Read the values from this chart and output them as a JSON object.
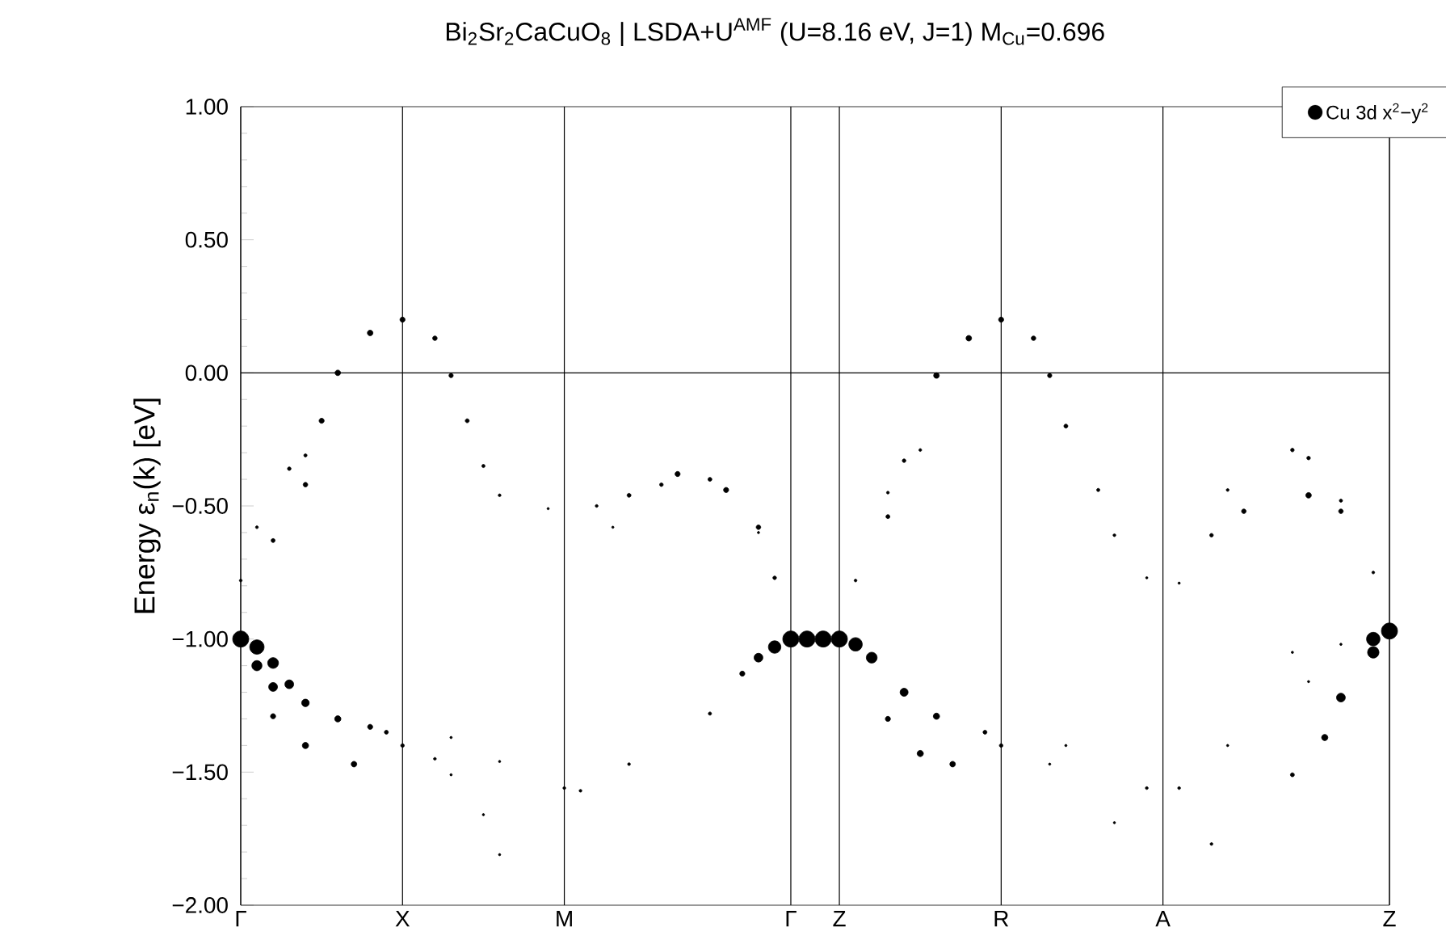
{
  "chart_data": {
    "type": "bubble",
    "title": "Bi$_{2}$Sr$_{2}$CaCuO$_{8}$ | LSDA+U$^{AMF}$ (U=8.16 eV, J=1) M$_{Cu}$=0.696",
    "ylabel": "Energy  ε$_{n}$(k)  [eV]",
    "categories": [
      "Γ",
      null,
      null,
      null,
      null,
      null,
      null,
      null,
      null,
      null,
      "X",
      null,
      null,
      null,
      null,
      null,
      null,
      null,
      null,
      null,
      "M",
      null,
      null,
      null,
      null,
      null,
      null,
      null,
      null,
      null,
      null,
      null,
      null,
      null,
      "Γ",
      null,
      null,
      "Z",
      null,
      null,
      null,
      null,
      null,
      null,
      null,
      null,
      null,
      "R",
      null,
      null,
      null,
      null,
      null,
      null,
      null,
      null,
      null,
      "A",
      null,
      null,
      null,
      null,
      null,
      null,
      null,
      null,
      null,
      null,
      null,
      null,
      null,
      "Z"
    ],
    "ylim": [
      -2,
      1
    ],
    "yticks": [
      {
        "value": 1,
        "label": "1.00"
      },
      {
        "value": 0.5,
        "label": "0.50"
      },
      {
        "value": 0,
        "label": "0.00"
      },
      {
        "value": -0.5,
        "label": "−0.50"
      },
      {
        "value": -1,
        "label": "−1.00"
      },
      {
        "value": -1.5,
        "label": "−1.50"
      },
      {
        "value": -2,
        "label": "−2.00"
      }
    ],
    "grid": "x",
    "legend": "top right",
    "marker": "circle",
    "ref_lines": [
      {
        "axis": "y",
        "value": 0,
        "color": "#000000"
      }
    ],
    "series": [
      {
        "name": "Cu 3d x$^{2}$−y$^{2}$",
        "color": "#000000",
        "values": [
          -1.0,
          -1.03,
          -1.09,
          -1.17,
          -1.24,
          null,
          -1.3,
          null,
          -1.33,
          -1.35,
          null,
          null,
          null,
          null,
          null,
          null,
          null,
          null,
          null,
          null,
          null,
          null,
          -0.5,
          null,
          -0.46,
          null,
          null,
          -0.38,
          null,
          null,
          -0.44,
          null,
          -0.58,
          -0.77,
          null,
          null,
          null,
          null,
          -0.78,
          null,
          -0.54,
          null,
          null,
          -0.01,
          null,
          0.13,
          null,
          0.2,
          null,
          0.13,
          -0.01,
          -0.2,
          null,
          -0.44,
          -0.61,
          null,
          -0.77,
          null,
          -0.79,
          null,
          -0.61,
          null,
          -0.52,
          null,
          null,
          null,
          -0.46,
          null,
          -0.52,
          null,
          -0.75,
          null
        ],
        "sizes": [
          1,
          0.8,
          0.45,
          0.3,
          0.22,
          null,
          0.15,
          null,
          0.1,
          0.06,
          null,
          null,
          null,
          null,
          null,
          null,
          null,
          null,
          null,
          null,
          null,
          null,
          0.03,
          null,
          0.06,
          null,
          null,
          0.1,
          null,
          null,
          0.1,
          null,
          0.08,
          0.05,
          null,
          null,
          null,
          null,
          0.03,
          null,
          0.06,
          null,
          null,
          0.12,
          null,
          0.12,
          null,
          0.1,
          null,
          0.08,
          0.07,
          0.06,
          null,
          0.04,
          0.03,
          null,
          0.02,
          null,
          0.02,
          null,
          0.05,
          null,
          0.08,
          null,
          null,
          null,
          0.12,
          null,
          0.08,
          null,
          0.03,
          null
        ]
      },
      {
        "color": "#000000",
        "values": [
          null,
          -1.1,
          -1.18,
          null,
          null,
          null,
          null,
          null,
          null,
          null,
          null,
          null,
          null,
          -1.37,
          null,
          null,
          -1.46,
          null,
          null,
          null,
          -1.56,
          -1.57,
          null,
          null,
          -1.47,
          null,
          null,
          null,
          null,
          -1.28,
          null,
          -1.13,
          -1.07,
          -1.03,
          -1.0,
          -1.0,
          -1.0,
          -1.0,
          -1.02,
          -1.07,
          null,
          -1.2,
          null,
          -1.29,
          null,
          null,
          -1.35,
          null,
          null,
          null,
          null,
          null,
          null,
          null,
          null,
          null,
          null,
          null,
          null,
          null,
          null,
          -0.44,
          null,
          null,
          null,
          -0.29,
          -0.32,
          null,
          -0.48,
          null,
          null,
          null
        ],
        "sizes": [
          null,
          0.4,
          0.3,
          null,
          null,
          null,
          null,
          null,
          null,
          null,
          null,
          null,
          null,
          0.02,
          null,
          null,
          0.02,
          null,
          null,
          null,
          0.03,
          0.03,
          null,
          null,
          0.03,
          null,
          null,
          null,
          null,
          0.04,
          null,
          0.1,
          0.3,
          0.6,
          1,
          1,
          1,
          1,
          0.7,
          0.45,
          null,
          0.25,
          null,
          0.15,
          null,
          null,
          0.06,
          null,
          null,
          null,
          null,
          null,
          null,
          null,
          null,
          null,
          null,
          null,
          null,
          null,
          null,
          0.03,
          null,
          null,
          null,
          0.05,
          0.05,
          null,
          0.04,
          null,
          null,
          null
        ]
      },
      {
        "color": "#000000",
        "values": [
          null,
          null,
          -1.29,
          null,
          -1.4,
          null,
          null,
          -1.47,
          null,
          null,
          -1.4,
          null,
          -1.45,
          -1.51,
          null,
          -1.66,
          -1.81,
          null,
          null,
          null,
          null,
          null,
          null,
          -0.58,
          null,
          null,
          -0.42,
          null,
          null,
          -0.4,
          null,
          null,
          -0.6,
          null,
          null,
          null,
          null,
          null,
          null,
          null,
          -1.3,
          null,
          -1.43,
          null,
          -1.47,
          null,
          null,
          -1.4,
          null,
          null,
          -1.47,
          null,
          null,
          null,
          -1.69,
          null,
          null,
          null,
          null,
          null,
          -1.77,
          null,
          null,
          null,
          null,
          -1.51,
          null,
          -1.37,
          -1.22,
          null,
          -1.05,
          -0.97
        ],
        "sizes": [
          null,
          null,
          0.1,
          null,
          0.15,
          null,
          null,
          0.12,
          null,
          null,
          0.05,
          null,
          0.03,
          0.02,
          null,
          0.02,
          0.02,
          null,
          null,
          null,
          null,
          null,
          null,
          0.02,
          null,
          null,
          0.05,
          null,
          null,
          0.06,
          null,
          null,
          0.02,
          null,
          null,
          null,
          null,
          null,
          null,
          null,
          0.1,
          null,
          0.15,
          null,
          0.12,
          null,
          null,
          0.05,
          null,
          null,
          0.02,
          null,
          null,
          null,
          0.02,
          null,
          null,
          null,
          null,
          null,
          0.03,
          null,
          null,
          null,
          null,
          0.06,
          null,
          0.15,
          0.3,
          null,
          0.5,
          1
        ]
      },
      {
        "color": "#000000",
        "values": [
          -0.78,
          null,
          -0.63,
          null,
          -0.42,
          -0.18,
          0,
          null,
          0.15,
          null,
          0.2,
          null,
          0.13,
          -0.01,
          -0.18,
          -0.35,
          -0.46,
          null,
          null,
          -0.51,
          null,
          null,
          null,
          null,
          null,
          null,
          null,
          null,
          null,
          null,
          null,
          null,
          null,
          null,
          null,
          null,
          null,
          null,
          null,
          null,
          -0.45,
          -0.33,
          -0.29,
          null,
          null,
          null,
          null,
          null,
          null,
          null,
          null,
          -1.4,
          null,
          null,
          null,
          null,
          -1.56,
          null,
          -1.56,
          null,
          null,
          -1.4,
          null,
          null,
          null,
          -1.05,
          -1.16,
          null,
          -1.02,
          null,
          -1.0,
          null
        ],
        "sizes": [
          0.03,
          null,
          0.06,
          null,
          0.08,
          0.1,
          0.12,
          null,
          0.12,
          null,
          0.1,
          null,
          0.08,
          0.07,
          0.06,
          0.04,
          0.03,
          null,
          null,
          0.02,
          null,
          null,
          null,
          null,
          null,
          null,
          null,
          null,
          null,
          null,
          null,
          null,
          null,
          null,
          null,
          null,
          null,
          null,
          null,
          null,
          0.03,
          0.05,
          0.03,
          null,
          null,
          null,
          null,
          null,
          null,
          null,
          null,
          0.02,
          null,
          null,
          null,
          null,
          0.03,
          null,
          0.03,
          null,
          null,
          0.02,
          null,
          null,
          null,
          0.02,
          0.02,
          null,
          0.02,
          null,
          0.7,
          null
        ]
      },
      {
        "color": "#000000",
        "values": [
          null,
          -0.58,
          null,
          -0.36,
          -0.31,
          null,
          null,
          null,
          null,
          null,
          null,
          null,
          null,
          null,
          null,
          null,
          null,
          null,
          null,
          null,
          null,
          null,
          null,
          null,
          null,
          null,
          null,
          null,
          null,
          null,
          null,
          null,
          null,
          null,
          null,
          null,
          null,
          null,
          null,
          null,
          null,
          null,
          null,
          null,
          null,
          null,
          null,
          null,
          null,
          null,
          null,
          null,
          null,
          null,
          null,
          null,
          null,
          null,
          null,
          null,
          null,
          null,
          null,
          null,
          null,
          null,
          null,
          null,
          null,
          null,
          null,
          null
        ],
        "sizes": [
          null,
          0.03,
          null,
          0.05,
          0.04,
          null,
          null,
          null,
          null,
          null,
          null,
          null,
          null,
          null,
          null,
          null,
          null,
          null,
          null,
          null,
          null,
          null,
          null,
          null,
          null,
          null,
          null,
          null,
          null,
          null,
          null,
          null,
          null,
          null,
          null,
          null,
          null,
          null,
          null,
          null,
          null,
          null,
          null,
          null,
          null,
          null,
          null,
          null,
          null,
          null,
          null,
          null,
          null,
          null,
          null,
          null,
          null,
          null,
          null,
          null,
          null,
          null,
          null,
          null,
          null,
          null,
          null,
          null,
          null,
          null,
          null,
          null
        ]
      }
    ]
  }
}
